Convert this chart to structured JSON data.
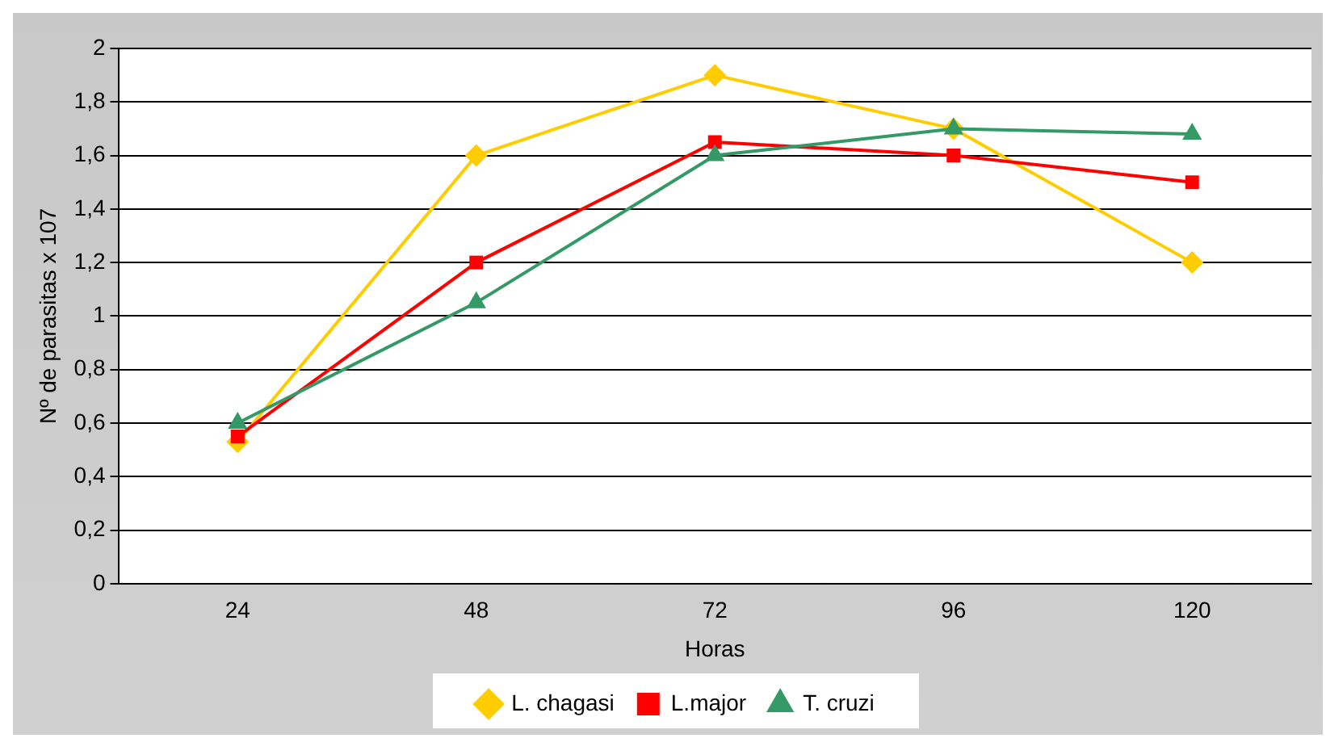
{
  "chart_data": {
    "type": "line",
    "xlabel": "Horas",
    "ylabel": "Nº de parasitas x 107",
    "categories": [
      "24",
      "48",
      "72",
      "96",
      "120"
    ],
    "series": [
      {
        "name": "L. chagasi",
        "color": "#ffcc00",
        "marker": "diamond",
        "values": [
          0.53,
          1.6,
          1.9,
          1.7,
          1.2
        ]
      },
      {
        "name": "L.major",
        "color": "#ff0000",
        "marker": "square",
        "values": [
          0.55,
          1.2,
          1.65,
          1.6,
          1.5
        ]
      },
      {
        "name": "T. cruzi",
        "color": "#339966",
        "marker": "triangle",
        "values": [
          0.6,
          1.05,
          1.6,
          1.7,
          1.68
        ]
      }
    ],
    "ylim": [
      0,
      2
    ],
    "yticks": [
      0,
      {
        "value": 0.2,
        "label": "0,2"
      },
      {
        "value": 0.4,
        "label": "0,4"
      },
      {
        "value": 0.6,
        "label": "0,6"
      },
      {
        "value": 0.8,
        "label": "0,8"
      },
      1,
      {
        "value": 1.2,
        "label": "1,2"
      },
      {
        "value": 1.4,
        "label": "1,4"
      },
      {
        "value": 1.6,
        "label": "1,6"
      },
      {
        "value": 1.8,
        "label": "1,8"
      },
      2
    ],
    "grid": "y",
    "legend": "bottom",
    "line_style": "solid"
  }
}
